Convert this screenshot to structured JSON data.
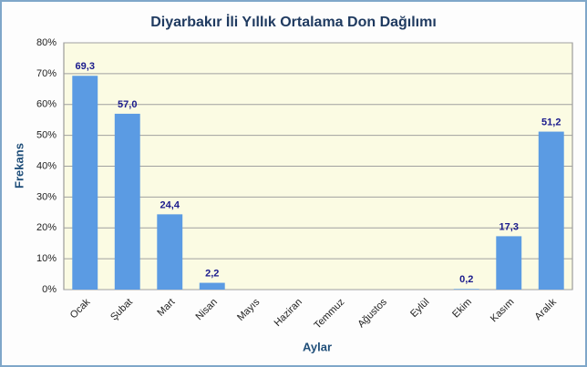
{
  "chart_data": {
    "type": "bar",
    "title": "Diyarbakır İli Yıllık Ortalama Don Dağılımı",
    "x_label": "Aylar",
    "y_label": "Frekans",
    "categories": [
      "Ocak",
      "Şubat",
      "Mart",
      "Nisan",
      "Mayıs",
      "Haziran",
      "Temmuz",
      "Ağustos",
      "Eylül",
      "Ekim",
      "Kasım",
      "Aralık"
    ],
    "values": [
      69.3,
      57.0,
      24.4,
      2.2,
      0,
      0,
      0,
      0,
      0,
      0.2,
      17.3,
      51.2
    ],
    "value_labels": [
      "69,3",
      "57,0",
      "24,4",
      "2,2",
      null,
      null,
      null,
      null,
      null,
      "0,2",
      "17,3",
      "51,2"
    ],
    "color": "#5b9be3",
    "ylim": [
      0,
      80
    ],
    "yticks": [
      {
        "value": 0,
        "label": "0%"
      },
      {
        "value": 10,
        "label": "10%"
      },
      {
        "value": 20,
        "label": "20%"
      },
      {
        "value": 30,
        "label": "30%"
      },
      {
        "value": 40,
        "label": "40%"
      },
      {
        "value": 50,
        "label": "50%"
      },
      {
        "value": 60,
        "label": "60%"
      },
      {
        "value": 70,
        "label": "70%"
      },
      {
        "value": 80,
        "label": "80%"
      }
    ],
    "grid": true
  }
}
